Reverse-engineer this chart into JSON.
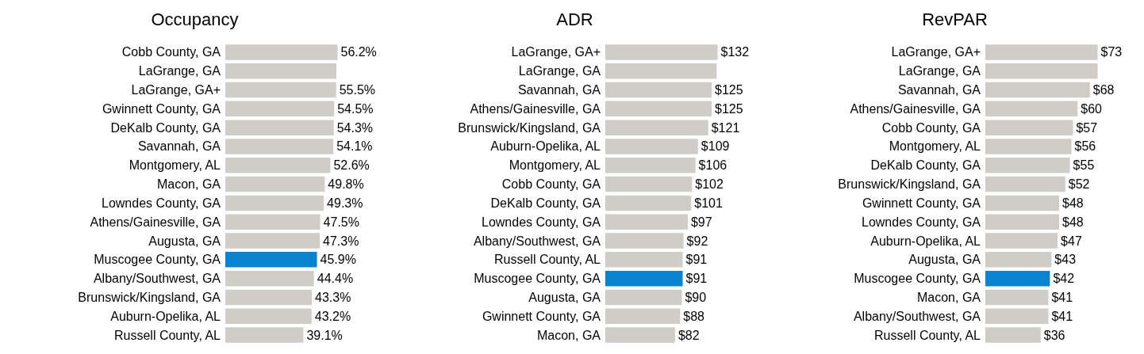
{
  "chart_data": [
    {
      "type": "bar",
      "orientation": "horizontal",
      "title": "Occupancy",
      "tick_labels": "y",
      "categories": [
        "Cobb County, GA",
        "LaGrange, GA",
        "LaGrange, GA+",
        "Gwinnett County, GA",
        "DeKalb County, GA",
        "Savannah, GA",
        "Montgomery, AL",
        "Macon, GA",
        "Lowndes County, GA",
        "Athens/Gainesville, GA",
        "Augusta, GA",
        "Muscogee County, GA",
        "Albany/Southwest, GA",
        "Brunswick/Kingsland, GA",
        "Auburn-Opelika, AL",
        "Russell County, AL"
      ],
      "values": [
        56.2,
        55.6,
        55.5,
        54.5,
        54.3,
        54.1,
        52.6,
        49.8,
        49.3,
        47.5,
        47.3,
        45.9,
        44.4,
        43.3,
        43.2,
        39.1
      ],
      "value_labels": [
        "56.2%",
        null,
        "55.5%",
        "54.5%",
        "54.3%",
        "54.1%",
        "52.6%",
        "49.8%",
        "49.3%",
        "47.5%",
        "47.3%",
        "45.9%",
        "44.4%",
        "43.3%",
        "43.2%",
        "39.1%"
      ],
      "colors": [
        "#d0cdc9",
        "#d0cdc9",
        "#d0cdc9",
        "#d0cdc9",
        "#d0cdc9",
        "#d0cdc9",
        "#d0cdc9",
        "#d0cdc9",
        "#d0cdc9",
        "#d0cdc9",
        "#d0cdc9",
        "#0a84d0",
        "#d0cdc9",
        "#d0cdc9",
        "#d0cdc9",
        "#d0cdc9"
      ]
    },
    {
      "type": "bar",
      "orientation": "horizontal",
      "title": "ADR",
      "tick_labels": "y",
      "categories": [
        "LaGrange, GA+",
        "LaGrange, GA",
        "Savannah, GA",
        "Athens/Gainesville, GA",
        "Brunswick/Kingsland, GA",
        "Auburn-Opelika, AL",
        "Montgomery, AL",
        "Cobb County, GA",
        "DeKalb County, GA",
        "Lowndes County, GA",
        "Albany/Southwest, GA",
        "Russell County, AL",
        "Muscogee County, GA",
        "Augusta, GA",
        "Gwinnett County, GA",
        "Macon, GA"
      ],
      "values": [
        132,
        131,
        125,
        125,
        121,
        109,
        106,
        102,
        101,
        97,
        92,
        91,
        91,
        90,
        88,
        82
      ],
      "value_labels": [
        "$132",
        null,
        "$125",
        "$125",
        "$121",
        "$109",
        "$106",
        "$102",
        "$101",
        "$97",
        "$92",
        "$91",
        "$91",
        "$90",
        "$88",
        "$82"
      ],
      "colors": [
        "#d0cdc9",
        "#d0cdc9",
        "#d0cdc9",
        "#d0cdc9",
        "#d0cdc9",
        "#d0cdc9",
        "#d0cdc9",
        "#d0cdc9",
        "#d0cdc9",
        "#d0cdc9",
        "#d0cdc9",
        "#d0cdc9",
        "#0a84d0",
        "#d0cdc9",
        "#d0cdc9",
        "#d0cdc9"
      ]
    },
    {
      "type": "bar",
      "orientation": "horizontal",
      "title": "RevPAR",
      "tick_labels": "y",
      "categories": [
        "LaGrange, GA+",
        "LaGrange, GA",
        "Savannah, GA",
        "Athens/Gainesville, GA",
        "Cobb County, GA",
        "Montgomery, AL",
        "DeKalb County, GA",
        "Brunswick/Kingsland, GA",
        "Gwinnett County, GA",
        "Lowndes County, GA",
        "Auburn-Opelika, AL",
        "Augusta, GA",
        "Muscogee County, GA",
        "Macon, GA",
        "Albany/Southwest, GA",
        "Russell County, AL"
      ],
      "values": [
        73,
        73,
        68,
        60,
        57,
        56,
        55,
        52,
        48,
        48,
        47,
        43,
        42,
        41,
        41,
        36
      ],
      "value_labels": [
        "$73",
        null,
        "$68",
        "$60",
        "$57",
        "$56",
        "$55",
        "$52",
        "$48",
        "$48",
        "$47",
        "$43",
        "$42",
        "$41",
        "$41",
        "$36"
      ],
      "colors": [
        "#d0cdc9",
        "#d0cdc9",
        "#d0cdc9",
        "#d0cdc9",
        "#d0cdc9",
        "#d0cdc9",
        "#d0cdc9",
        "#d0cdc9",
        "#d0cdc9",
        "#d0cdc9",
        "#d0cdc9",
        "#d0cdc9",
        "#0a84d0",
        "#d0cdc9",
        "#d0cdc9",
        "#d0cdc9"
      ]
    }
  ]
}
